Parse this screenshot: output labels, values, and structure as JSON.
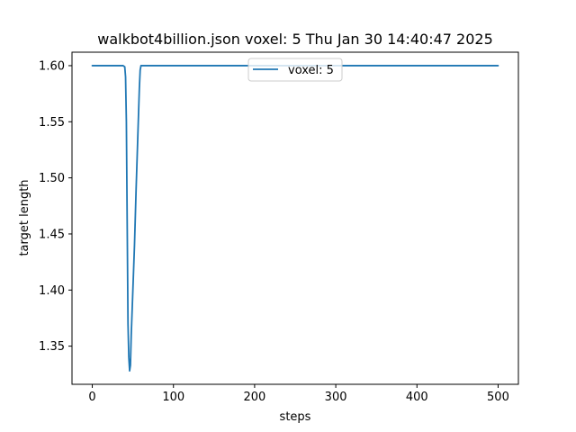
{
  "chart_data": {
    "type": "line",
    "title": "walkbot4billion.json voxel: 5 Thu Jan 30 14:40:47 2025",
    "xlabel": "steps",
    "ylabel": "target length",
    "xlim": [
      -25,
      525
    ],
    "ylim": [
      1.316,
      1.612
    ],
    "x_ticks": [
      0,
      100,
      200,
      300,
      400,
      500
    ],
    "y_ticks": [
      1.35,
      1.4,
      1.45,
      1.5,
      1.55,
      1.6
    ],
    "x_tick_labels": [
      "0",
      "100",
      "200",
      "300",
      "400",
      "500"
    ],
    "y_tick_labels": [
      "1.35",
      "1.40",
      "1.45",
      "1.50",
      "1.55",
      "1.60"
    ],
    "grid": false,
    "legend": {
      "placement": "top-center",
      "entries": [
        "voxel: 5"
      ]
    },
    "series": [
      {
        "name": "voxel: 5",
        "color": "#1f77b4",
        "points": [
          [
            0,
            1.6
          ],
          [
            38,
            1.6
          ],
          [
            40,
            1.599
          ],
          [
            41,
            1.59
          ],
          [
            42,
            1.55
          ],
          [
            43,
            1.46
          ],
          [
            44,
            1.37
          ],
          [
            45,
            1.34
          ],
          [
            46,
            1.328
          ],
          [
            47,
            1.333
          ],
          [
            48,
            1.36
          ],
          [
            50,
            1.4
          ],
          [
            52,
            1.44
          ],
          [
            54,
            1.49
          ],
          [
            56,
            1.535
          ],
          [
            58,
            1.58
          ],
          [
            59,
            1.596
          ],
          [
            60,
            1.6
          ],
          [
            500,
            1.6
          ]
        ]
      }
    ]
  }
}
